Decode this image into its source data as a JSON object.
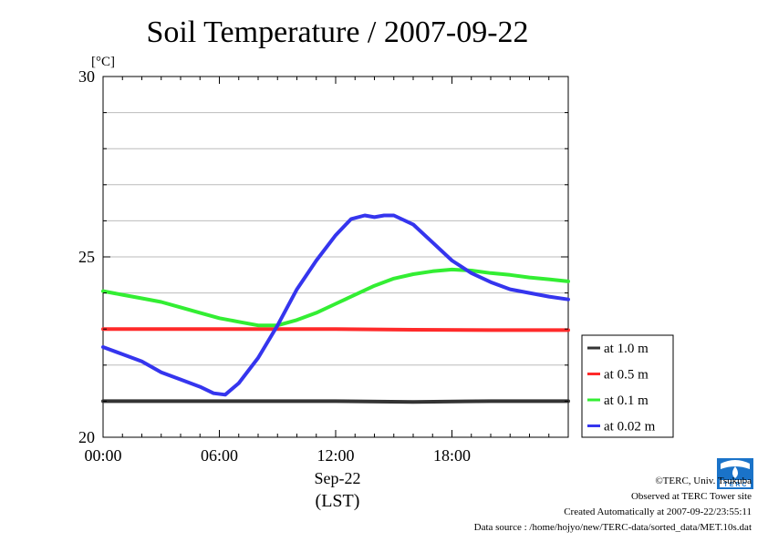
{
  "chart_data": {
    "type": "line",
    "title": "Soil Temperature / 2007-09-22",
    "ylabel": "[°C]",
    "xlabel": "(LST)",
    "date_label": "Sep-22",
    "ylim": [
      20,
      30
    ],
    "xlim_hours": [
      0,
      24
    ],
    "y_ticks": [
      "20",
      "25",
      "30"
    ],
    "x_ticks": [
      {
        "label": "00:00",
        "hour": 0
      },
      {
        "label": "06:00",
        "hour": 6
      },
      {
        "label": "12:00",
        "hour": 12
      },
      {
        "label": "18:00",
        "hour": 18
      }
    ],
    "grid": true,
    "legend_position": "right",
    "series": [
      {
        "name": "at 1.0 m",
        "color": "#333333",
        "points": [
          [
            0,
            21.0
          ],
          [
            4,
            21.0
          ],
          [
            8,
            21.0
          ],
          [
            12,
            21.0
          ],
          [
            16,
            20.98
          ],
          [
            20,
            21.0
          ],
          [
            24,
            21.0
          ]
        ]
      },
      {
        "name": "at 0.5 m",
        "color": "#ff2a2a",
        "points": [
          [
            0,
            23.0
          ],
          [
            4,
            23.0
          ],
          [
            8,
            23.0
          ],
          [
            12,
            23.0
          ],
          [
            16,
            22.98
          ],
          [
            20,
            22.97
          ],
          [
            24,
            22.97
          ]
        ]
      },
      {
        "name": "at 0.1 m",
        "color": "#33ee33",
        "points": [
          [
            0,
            24.05
          ],
          [
            1,
            23.95
          ],
          [
            2,
            23.85
          ],
          [
            3,
            23.75
          ],
          [
            4,
            23.6
          ],
          [
            5,
            23.45
          ],
          [
            6,
            23.3
          ],
          [
            7,
            23.2
          ],
          [
            8,
            23.1
          ],
          [
            9,
            23.1
          ],
          [
            10,
            23.25
          ],
          [
            11,
            23.45
          ],
          [
            12,
            23.7
          ],
          [
            13,
            23.95
          ],
          [
            14,
            24.2
          ],
          [
            15,
            24.4
          ],
          [
            16,
            24.52
          ],
          [
            17,
            24.6
          ],
          [
            18,
            24.65
          ],
          [
            19,
            24.62
          ],
          [
            20,
            24.55
          ],
          [
            21,
            24.5
          ],
          [
            22,
            24.43
          ],
          [
            23,
            24.38
          ],
          [
            24,
            24.32
          ]
        ]
      },
      {
        "name": "at 0.02 m",
        "color": "#3535ee",
        "points": [
          [
            0,
            22.5
          ],
          [
            1,
            22.3
          ],
          [
            2,
            22.1
          ],
          [
            3,
            21.8
          ],
          [
            4,
            21.6
          ],
          [
            5,
            21.4
          ],
          [
            5.7,
            21.22
          ],
          [
            6.3,
            21.18
          ],
          [
            7,
            21.5
          ],
          [
            8,
            22.2
          ],
          [
            9,
            23.1
          ],
          [
            10,
            24.1
          ],
          [
            11,
            24.9
          ],
          [
            12,
            25.6
          ],
          [
            12.8,
            26.05
          ],
          [
            13.5,
            26.15
          ],
          [
            14,
            26.1
          ],
          [
            14.5,
            26.15
          ],
          [
            15,
            26.15
          ],
          [
            16,
            25.9
          ],
          [
            17,
            25.4
          ],
          [
            18,
            24.9
          ],
          [
            19,
            24.55
          ],
          [
            20,
            24.3
          ],
          [
            21,
            24.1
          ],
          [
            22,
            24.0
          ],
          [
            23,
            23.9
          ],
          [
            24,
            23.82
          ]
        ]
      }
    ]
  },
  "footer": {
    "copyright": "©TERC, Univ. Tsukuba",
    "observed": "Observed at TERC Tower site",
    "created": "Created Automatically at 2007-09-22/23:55:11",
    "source": "Data source : /home/hojyo/new/TERC-data/sorted_data/MET.10s.dat"
  },
  "logo_text": "TERC"
}
